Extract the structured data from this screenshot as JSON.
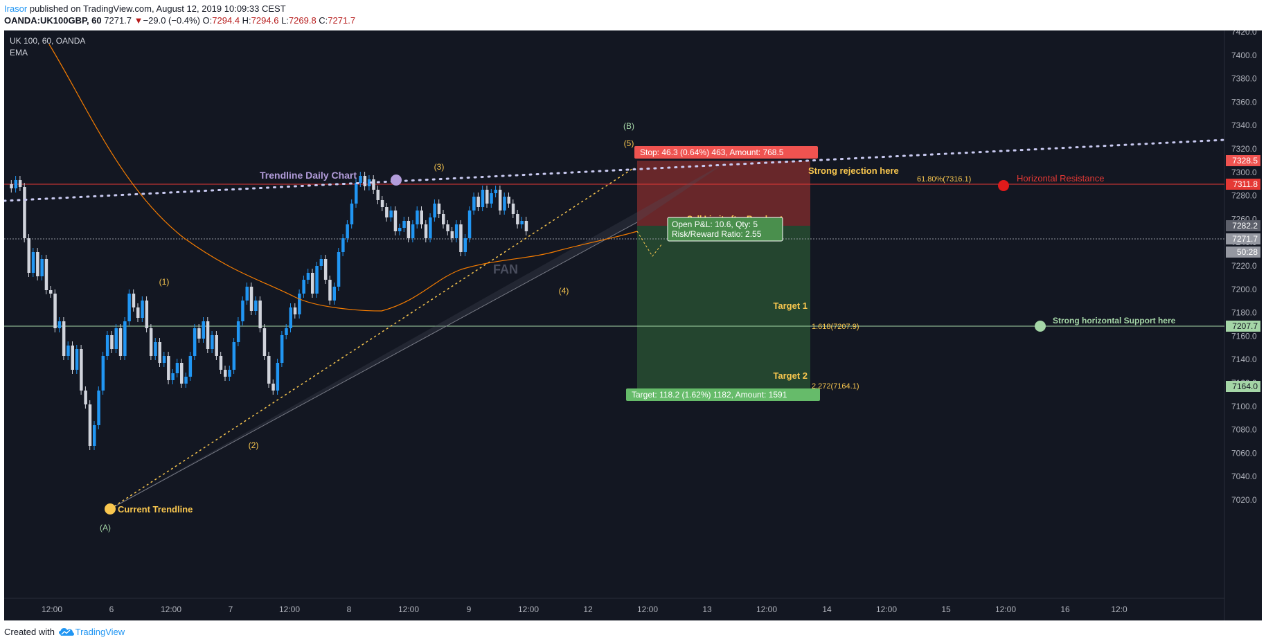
{
  "header": {
    "author": "Irasor",
    "published_text": " published on TradingView.com, August 12, 2019 10:09:33 CEST",
    "symbol": "OANDA:UK100GBP, 60",
    "last": "7271.7",
    "change": "−29.0 (−0.4%)",
    "o_label": "O:",
    "o_val": "7294.4",
    "h_label": "H:",
    "h_val": "7294.6",
    "l_label": "L:",
    "l_val": "7269.8",
    "c_label": "C:",
    "c_val": "7271.7"
  },
  "legend": {
    "title": "UK 100, 60, OANDA",
    "indicator": "EMA"
  },
  "colors": {
    "background": "#131722",
    "up": "#2196f3",
    "down": "#d1d4dc",
    "ema": "#f57c00",
    "resistance": "#f44336",
    "support": "#a5d6a7",
    "annotation": "#f9c74f",
    "trendline": "#c8c9f0"
  },
  "axis": {
    "price_ticks": [
      "7420.0",
      "7400.0",
      "7380.0",
      "7360.0",
      "7340.0",
      "7320.0",
      "7300.0",
      "7280.0",
      "7260.0",
      "7240.0",
      "7220.0",
      "7200.0",
      "7180.0",
      "7160.0",
      "7140.0",
      "7120.0",
      "7100.0",
      "7080.0",
      "7060.0",
      "7040.0",
      "7020.0"
    ],
    "time_ticks": [
      "12:00",
      "6",
      "12:00",
      "7",
      "12:00",
      "8",
      "12:00",
      "9",
      "12:00",
      "12",
      "12:00",
      "13",
      "12:00",
      "14",
      "12:00",
      "15",
      "12:00",
      "16",
      "12:0"
    ],
    "price_tags": [
      {
        "label": "7328.5",
        "kind": "stop"
      },
      {
        "label": "7311.8",
        "kind": "resistance"
      },
      {
        "label": "7282.2",
        "kind": "entry"
      },
      {
        "label": "7271.7",
        "kind": "last"
      },
      {
        "label": "50:28",
        "kind": "countdown"
      },
      {
        "label": "7207.7",
        "kind": "support"
      },
      {
        "label": "7164.0",
        "kind": "target"
      }
    ]
  },
  "annotations": {
    "trendline_daily": "Trendline Daily Chart",
    "current_trendline": "Current Trendline",
    "strong_rejection": "Strong rejection here",
    "fib_618": "61.80%(7316.1)",
    "horizontal_resistance": "Horizontal Resistance",
    "sell_limit": "Sell Limit after Breakout",
    "target1": "Target 1",
    "fib_1618": "1.618(7207.9)",
    "support_here": "Strong horizontal Support here",
    "target2": "Target 2",
    "fib_2272": "2.272(7164.1)",
    "fan": "FAN",
    "waves": [
      "(A)",
      "(1)",
      "(2)",
      "(3)",
      "(4)",
      "(5)",
      "(B)"
    ]
  },
  "position": {
    "stop": "Stop: 46.3 (0.64%) 463, Amount: 768.5",
    "open_pl": "Open P&L: 10.6, Qty: 5",
    "rr": "Risk/Reward Ratio: 2.55",
    "target": "Target: 118.2 (1.62%) 1182, Amount: 1591"
  },
  "footer": {
    "created_with": "Created with",
    "brand": "TradingView"
  }
}
